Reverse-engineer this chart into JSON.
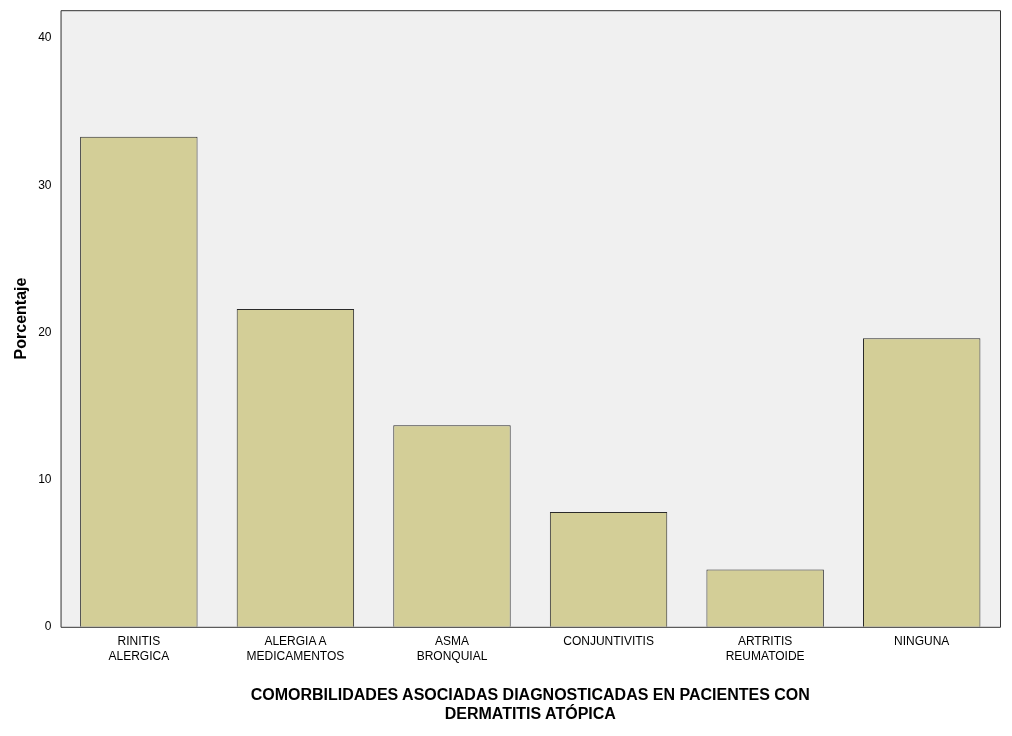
{
  "chart_data": {
    "type": "bar",
    "xlabel": "COMORBILIDADES ASOCIADAS DIAGNOSTICADAS EN PACIENTES CON DERMATITIS ATÓPICA",
    "ylabel": "Porcentaje",
    "categories": [
      "RINITIS ALERGICA",
      "ALERGIA A MEDICAMENTOS",
      "ASMA BRONQUIAL",
      "CONJUNTIVITIS",
      "ARTRITIS REUMATOIDE",
      "NINGUNA"
    ],
    "values": [
      33.3,
      21.6,
      13.7,
      7.8,
      3.9,
      19.6
    ],
    "color": "#d3ce97",
    "ylim": [
      0,
      41.9
    ],
    "yticks": [
      0,
      10,
      20,
      30,
      40
    ],
    "grid": false,
    "legend": false
  }
}
